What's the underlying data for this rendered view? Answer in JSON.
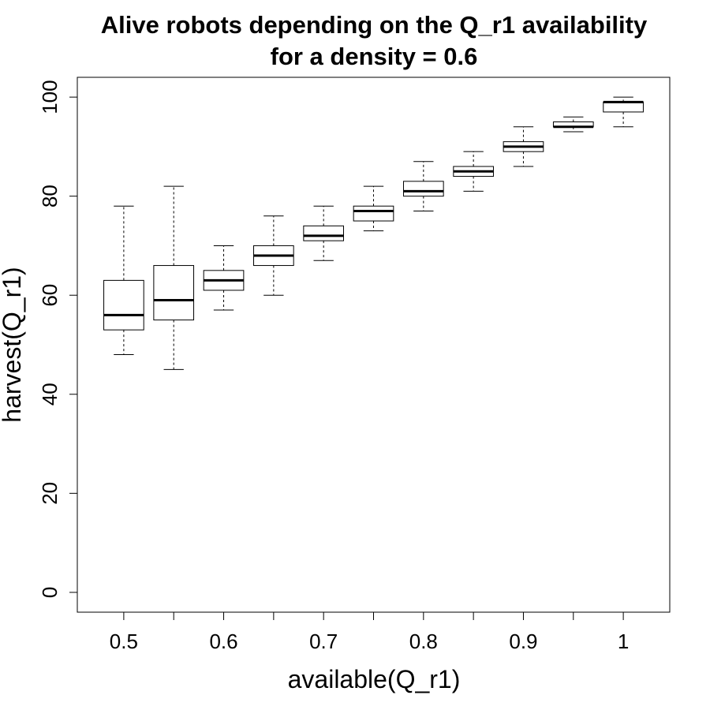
{
  "chart_data": {
    "type": "box",
    "title_line1": "Alive robots depending on the Q_r1 availability",
    "title_line2": "for a density = 0.6",
    "xlabel": "available(Q_r1)",
    "ylabel": "harvest(Q_r1)",
    "ylim": [
      -4,
      104
    ],
    "y_ticks": [
      "0",
      "20",
      "40",
      "60",
      "80",
      "100"
    ],
    "x_tick_labels": [
      "0.5",
      "",
      "0.6",
      "",
      "0.7",
      "",
      "0.8",
      "",
      "0.9",
      "",
      "1"
    ],
    "categories": [
      "0.5",
      "0.55",
      "0.6",
      "0.65",
      "0.7",
      "0.75",
      "0.8",
      "0.85",
      "0.9",
      "0.95",
      "1"
    ],
    "boxes": [
      {
        "min": 48,
        "q1": 53,
        "median": 56,
        "q3": 63,
        "max": 78
      },
      {
        "min": 45,
        "q1": 55,
        "median": 59,
        "q3": 66,
        "max": 82
      },
      {
        "min": 57,
        "q1": 61,
        "median": 63,
        "q3": 65,
        "max": 70
      },
      {
        "min": 60,
        "q1": 66,
        "median": 68,
        "q3": 70,
        "max": 76
      },
      {
        "min": 67,
        "q1": 71,
        "median": 72,
        "q3": 74,
        "max": 78
      },
      {
        "min": 73,
        "q1": 75,
        "median": 77,
        "q3": 78,
        "max": 82
      },
      {
        "min": 77,
        "q1": 80,
        "median": 81,
        "q3": 83,
        "max": 87
      },
      {
        "min": 81,
        "q1": 84,
        "median": 85,
        "q3": 86,
        "max": 89
      },
      {
        "min": 86,
        "q1": 89,
        "median": 90,
        "q3": 91,
        "max": 94
      },
      {
        "min": 93,
        "q1": 94,
        "median": 94,
        "q3": 95,
        "max": 96
      },
      {
        "min": 94,
        "q1": 97,
        "median": 99,
        "q3": 99,
        "max": 100
      }
    ],
    "grid": false,
    "legend": "none",
    "colors": {
      "box_fill": "#ffffff",
      "stroke": "#000000"
    }
  }
}
